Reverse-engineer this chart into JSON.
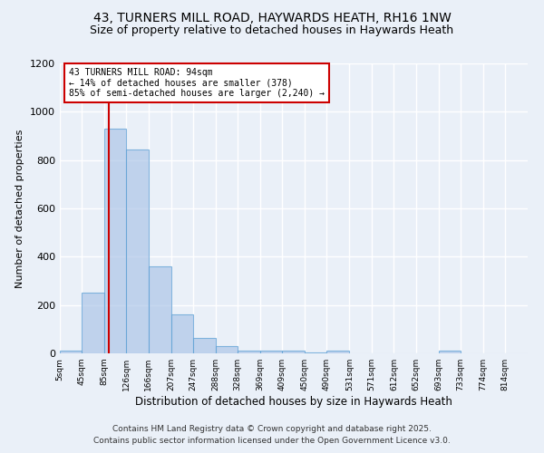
{
  "title": "43, TURNERS MILL ROAD, HAYWARDS HEATH, RH16 1NW",
  "subtitle": "Size of property relative to detached houses in Haywards Heath",
  "xlabel": "Distribution of detached houses by size in Haywards Heath",
  "ylabel": "Number of detached properties",
  "bin_edges": [
    5,
    45,
    85,
    126,
    166,
    207,
    247,
    288,
    328,
    369,
    409,
    450,
    490,
    531,
    571,
    612,
    652,
    693,
    733,
    774,
    814,
    855
  ],
  "bin_labels": [
    "5sqm",
    "45sqm",
    "85sqm",
    "126sqm",
    "166sqm",
    "207sqm",
    "247sqm",
    "288sqm",
    "328sqm",
    "369sqm",
    "409sqm",
    "450sqm",
    "490sqm",
    "531sqm",
    "571sqm",
    "612sqm",
    "652sqm",
    "693sqm",
    "733sqm",
    "774sqm",
    "814sqm"
  ],
  "bar_heights": [
    10,
    250,
    930,
    845,
    360,
    160,
    65,
    30,
    13,
    10,
    10,
    5,
    10,
    0,
    0,
    0,
    0,
    10,
    0,
    0,
    0
  ],
  "bar_color": "#aec6e8",
  "bar_edge_color": "#5a9fd4",
  "bar_alpha": 0.7,
  "vline_x": 94,
  "vline_color": "#cc0000",
  "vline_label": "43 TURNERS MILL ROAD: 94sqm",
  "annotation_line2": "← 14% of detached houses are smaller (378)",
  "annotation_line3": "85% of semi-detached houses are larger (2,240) →",
  "annotation_box_color": "#ffffff",
  "annotation_box_edge": "#cc0000",
  "ylim": [
    0,
    1200
  ],
  "yticks": [
    0,
    200,
    400,
    600,
    800,
    1000,
    1200
  ],
  "background_color": "#eaf0f8",
  "grid_color": "#ffffff",
  "footer_line1": "Contains HM Land Registry data © Crown copyright and database right 2025.",
  "footer_line2": "Contains public sector information licensed under the Open Government Licence v3.0.",
  "title_fontsize": 10,
  "subtitle_fontsize": 9
}
